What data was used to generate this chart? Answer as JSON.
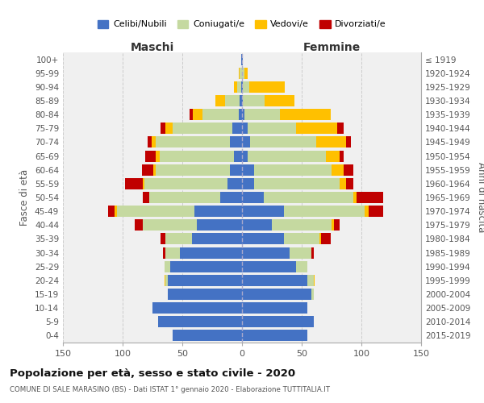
{
  "age_groups": [
    "0-4",
    "5-9",
    "10-14",
    "15-19",
    "20-24",
    "25-29",
    "30-34",
    "35-39",
    "40-44",
    "45-49",
    "50-54",
    "55-59",
    "60-64",
    "65-69",
    "70-74",
    "75-79",
    "80-84",
    "85-89",
    "90-94",
    "95-99",
    "100+"
  ],
  "birth_years": [
    "2015-2019",
    "2010-2014",
    "2005-2009",
    "2000-2004",
    "1995-1999",
    "1990-1994",
    "1985-1989",
    "1980-1984",
    "1975-1979",
    "1970-1974",
    "1965-1969",
    "1960-1964",
    "1955-1959",
    "1950-1954",
    "1945-1949",
    "1940-1944",
    "1935-1939",
    "1930-1934",
    "1925-1929",
    "1920-1924",
    "≤ 1919"
  ],
  "maschi_celibi": [
    58,
    70,
    75,
    62,
    62,
    60,
    52,
    42,
    38,
    40,
    18,
    12,
    10,
    7,
    10,
    8,
    3,
    2,
    1,
    0,
    1
  ],
  "maschi_coniugati": [
    0,
    0,
    0,
    0,
    2,
    5,
    12,
    22,
    45,
    65,
    60,
    70,
    62,
    62,
    62,
    50,
    30,
    12,
    3,
    2,
    0
  ],
  "maschi_vedovi": [
    0,
    0,
    0,
    0,
    1,
    0,
    0,
    0,
    0,
    2,
    0,
    1,
    2,
    3,
    4,
    6,
    8,
    8,
    3,
    1,
    0
  ],
  "maschi_divorziati": [
    0,
    0,
    0,
    0,
    0,
    0,
    2,
    4,
    7,
    5,
    5,
    15,
    10,
    9,
    3,
    4,
    3,
    0,
    0,
    0,
    0
  ],
  "femmine_celibi": [
    55,
    60,
    55,
    58,
    55,
    45,
    40,
    35,
    25,
    35,
    18,
    10,
    10,
    5,
    7,
    5,
    2,
    1,
    1,
    0,
    1
  ],
  "femmine_coniugati": [
    0,
    0,
    0,
    2,
    5,
    10,
    18,
    30,
    50,
    68,
    75,
    72,
    65,
    65,
    55,
    40,
    30,
    18,
    5,
    2,
    0
  ],
  "femmine_vedovi": [
    0,
    0,
    0,
    0,
    1,
    0,
    0,
    1,
    2,
    3,
    3,
    5,
    10,
    12,
    25,
    35,
    42,
    25,
    30,
    3,
    0
  ],
  "femmine_divorziati": [
    0,
    0,
    0,
    0,
    0,
    0,
    2,
    8,
    5,
    12,
    22,
    6,
    8,
    3,
    4,
    5,
    0,
    0,
    0,
    0,
    0
  ],
  "color_celibi": "#4472C4",
  "color_coniugati": "#c5d9a0",
  "color_vedovi": "#ffc000",
  "color_divorziati": "#c00000",
  "color_background": "#f0f0f0",
  "color_gridline": "#cccccc",
  "title": "Popolazione per età, sesso e stato civile - 2020",
  "subtitle": "COMUNE DI SALE MARASINO (BS) - Dati ISTAT 1° gennaio 2020 - Elaborazione TUTTITALIA.IT",
  "xlabel_maschi": "Maschi",
  "xlabel_femmine": "Femmine",
  "ylabel_left": "Fasce di età",
  "ylabel_right": "Anni di nascita",
  "xlim": 150,
  "legend_labels": [
    "Celibi/Nubili",
    "Coniugati/e",
    "Vedovi/e",
    "Divorziati/e"
  ]
}
